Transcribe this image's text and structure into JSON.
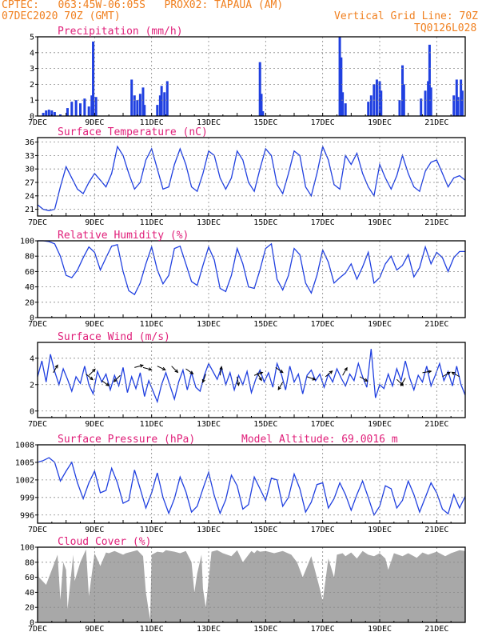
{
  "header": {
    "line1": "CPTEC:   063:45W-06:05S   PROX02: TAPAUA (AM)",
    "line2": "07DEC2020 70Z (GMT)",
    "vertical_grid": "Vertical Grid Line: 70Z",
    "code": "TQ0126L028"
  },
  "colors": {
    "header": "#f08020",
    "panel_title": "#e0207a",
    "series": "#2040e0",
    "cloud": "#a8a8a8",
    "grid": "#888888"
  },
  "chart_data": [
    {
      "id": "precip",
      "type": "bar",
      "title": "Precipitation (mm/h)",
      "xlim": [
        7,
        22
      ],
      "ylim": [
        0,
        5
      ],
      "yticks": [
        0,
        1,
        2,
        3,
        4,
        5
      ],
      "xticks": [
        "7DEC",
        "9DEC",
        "11DEC",
        "13DEC",
        "15DEC",
        "17DEC",
        "19DEC",
        "21DEC"
      ],
      "bars": [
        [
          7.2,
          0.2
        ],
        [
          7.3,
          0.35
        ],
        [
          7.4,
          0.4
        ],
        [
          7.5,
          0.35
        ],
        [
          7.6,
          0.25
        ],
        [
          7.8,
          0.1
        ],
        [
          8.05,
          0.5
        ],
        [
          8.2,
          0.9
        ],
        [
          8.35,
          1.0
        ],
        [
          8.5,
          0.8
        ],
        [
          8.65,
          1.1
        ],
        [
          8.8,
          0.6
        ],
        [
          8.9,
          1.3
        ],
        [
          8.95,
          4.7
        ],
        [
          9.05,
          1.2
        ],
        [
          10.3,
          2.3
        ],
        [
          10.4,
          1.3
        ],
        [
          10.5,
          1.0
        ],
        [
          10.6,
          1.4
        ],
        [
          10.7,
          1.8
        ],
        [
          10.75,
          0.7
        ],
        [
          11.2,
          0.7
        ],
        [
          11.3,
          1.3
        ],
        [
          11.35,
          1.9
        ],
        [
          11.45,
          1.5
        ],
        [
          11.55,
          2.2
        ],
        [
          14.8,
          3.4
        ],
        [
          14.85,
          1.4
        ],
        [
          14.9,
          0.3
        ],
        [
          17.6,
          5.0
        ],
        [
          17.65,
          3.7
        ],
        [
          17.7,
          1.5
        ],
        [
          17.8,
          0.8
        ],
        [
          18.6,
          0.9
        ],
        [
          18.7,
          1.3
        ],
        [
          18.8,
          2.0
        ],
        [
          18.9,
          2.3
        ],
        [
          19.0,
          2.2
        ],
        [
          19.05,
          1.6
        ],
        [
          19.7,
          1.0
        ],
        [
          19.8,
          3.2
        ],
        [
          19.85,
          2.0
        ],
        [
          20.45,
          1.1
        ],
        [
          20.6,
          1.6
        ],
        [
          20.7,
          2.2
        ],
        [
          20.75,
          4.5
        ],
        [
          20.8,
          1.8
        ],
        [
          21.6,
          1.3
        ],
        [
          21.7,
          2.3
        ],
        [
          21.75,
          1.2
        ],
        [
          21.85,
          2.3
        ],
        [
          21.9,
          1.6
        ]
      ]
    },
    {
      "id": "temp",
      "type": "line",
      "title": "Surface Temperature (nC)",
      "xlim": [
        7,
        22
      ],
      "ylim": [
        19.5,
        37
      ],
      "yticks": [
        21,
        24,
        27,
        30,
        33,
        36
      ],
      "xticks": [
        "7DEC",
        "9DEC",
        "11DEC",
        "13DEC",
        "15DEC",
        "17DEC",
        "19DEC",
        "21DEC"
      ],
      "x": [
        7,
        7.2,
        7.4,
        7.6,
        7.8,
        8.0,
        8.2,
        8.4,
        8.6,
        8.8,
        9.0,
        9.2,
        9.4,
        9.6,
        9.8,
        10.0,
        10.2,
        10.4,
        10.6,
        10.8,
        11.0,
        11.2,
        11.4,
        11.6,
        11.8,
        12.0,
        12.2,
        12.4,
        12.6,
        12.8,
        13.0,
        13.2,
        13.4,
        13.6,
        13.8,
        14.0,
        14.2,
        14.4,
        14.6,
        14.8,
        15.0,
        15.2,
        15.4,
        15.6,
        15.8,
        16.0,
        16.2,
        16.4,
        16.6,
        16.8,
        17.0,
        17.2,
        17.4,
        17.6,
        17.8,
        18.0,
        18.2,
        18.4,
        18.6,
        18.8,
        19.0,
        19.2,
        19.4,
        19.6,
        19.8,
        20.0,
        20.2,
        20.4,
        20.6,
        20.8,
        21.0,
        21.2,
        21.4,
        21.6,
        21.8,
        22.0
      ],
      "y": [
        22,
        21,
        20.7,
        21,
        26,
        30.5,
        28,
        25.5,
        24.5,
        27,
        29,
        27.5,
        26,
        29,
        35,
        33,
        29,
        25.5,
        27,
        32,
        34.5,
        30,
        25.5,
        26,
        31,
        34.5,
        31,
        26,
        25,
        29,
        34,
        33,
        28,
        25.5,
        28,
        34,
        32,
        27,
        25,
        30,
        34.5,
        33,
        26.5,
        24.5,
        29,
        34,
        33,
        26,
        24,
        29,
        35,
        32,
        26.5,
        25.5,
        33,
        31,
        33.5,
        29,
        26,
        24,
        31,
        28,
        25.5,
        28.5,
        33,
        29,
        26,
        25,
        29.5,
        31.5,
        32,
        29,
        26,
        28,
        28.5,
        27.5
      ]
    },
    {
      "id": "rh",
      "type": "line",
      "title": "Relative Humidity (%)",
      "xlim": [
        7,
        22
      ],
      "ylim": [
        0,
        100
      ],
      "yticks": [
        0,
        20,
        40,
        60,
        80,
        100
      ],
      "xticks": [
        "7DEC",
        "9DEC",
        "11DEC",
        "13DEC",
        "15DEC",
        "17DEC",
        "19DEC",
        "21DEC"
      ],
      "x": [
        7,
        7.2,
        7.4,
        7.6,
        7.8,
        8.0,
        8.2,
        8.4,
        8.6,
        8.8,
        9.0,
        9.2,
        9.4,
        9.6,
        9.8,
        10.0,
        10.2,
        10.4,
        10.6,
        10.8,
        11.0,
        11.2,
        11.4,
        11.6,
        11.8,
        12.0,
        12.2,
        12.4,
        12.6,
        12.8,
        13.0,
        13.2,
        13.4,
        13.6,
        13.8,
        14.0,
        14.2,
        14.4,
        14.6,
        14.8,
        15.0,
        15.2,
        15.4,
        15.6,
        15.8,
        16.0,
        16.2,
        16.4,
        16.6,
        16.8,
        17.0,
        17.2,
        17.4,
        17.6,
        17.8,
        18.0,
        18.2,
        18.4,
        18.6,
        18.8,
        19.0,
        19.2,
        19.4,
        19.6,
        19.8,
        20.0,
        20.2,
        20.4,
        20.6,
        20.8,
        21.0,
        21.2,
        21.4,
        21.6,
        21.8,
        22.0
      ],
      "y": [
        100,
        100,
        99,
        96,
        80,
        55,
        52,
        62,
        78,
        92,
        85,
        62,
        78,
        93,
        95,
        60,
        35,
        30,
        45,
        70,
        92,
        62,
        44,
        55,
        90,
        93,
        70,
        47,
        42,
        68,
        92,
        75,
        38,
        34,
        55,
        90,
        70,
        40,
        38,
        62,
        90,
        96,
        50,
        36,
        55,
        90,
        82,
        45,
        32,
        55,
        88,
        72,
        45,
        52,
        58,
        70,
        50,
        66,
        85,
        45,
        52,
        70,
        80,
        62,
        68,
        82,
        53,
        65,
        92,
        70,
        85,
        78,
        60,
        78,
        86,
        86
      ]
    },
    {
      "id": "wind",
      "type": "line",
      "title": "Surface Wind (m/s)",
      "xlim": [
        7,
        22
      ],
      "ylim": [
        -0.5,
        5.2
      ],
      "yticks": [
        0,
        2,
        4
      ],
      "xticks": [
        "7DEC",
        "9DEC",
        "11DEC",
        "13DEC",
        "15DEC",
        "17DEC",
        "19DEC",
        "21DEC"
      ],
      "x": [
        7,
        7.15,
        7.3,
        7.45,
        7.6,
        7.75,
        7.9,
        8.05,
        8.2,
        8.35,
        8.5,
        8.65,
        8.8,
        8.95,
        9.1,
        9.25,
        9.4,
        9.55,
        9.7,
        9.85,
        10.0,
        10.15,
        10.3,
        10.45,
        10.6,
        10.75,
        10.9,
        11.05,
        11.2,
        11.35,
        11.5,
        11.65,
        11.8,
        11.95,
        12.1,
        12.25,
        12.4,
        12.55,
        12.7,
        12.85,
        13.0,
        13.15,
        13.3,
        13.45,
        13.6,
        13.75,
        13.9,
        14.05,
        14.2,
        14.35,
        14.5,
        14.65,
        14.8,
        14.95,
        15.1,
        15.25,
        15.4,
        15.55,
        15.7,
        15.85,
        16.0,
        16.15,
        16.3,
        16.45,
        16.6,
        16.75,
        16.9,
        17.05,
        17.2,
        17.35,
        17.5,
        17.65,
        17.8,
        17.95,
        18.1,
        18.25,
        18.4,
        18.55,
        18.7,
        18.85,
        19.0,
        19.15,
        19.3,
        19.45,
        19.6,
        19.75,
        19.9,
        20.05,
        20.2,
        20.35,
        20.5,
        20.65,
        20.8,
        20.95,
        21.1,
        21.25,
        21.4,
        21.55,
        21.7,
        21.85,
        22.0
      ],
      "y": [
        2.6,
        3.8,
        2.2,
        4.3,
        3.0,
        2.0,
        3.2,
        2.4,
        1.5,
        2.6,
        2.1,
        3.4,
        2.0,
        1.3,
        3.0,
        2.2,
        2.8,
        1.6,
        2.7,
        1.9,
        3.3,
        1.4,
        2.6,
        1.7,
        2.9,
        1.1,
        2.3,
        1.5,
        0.7,
        2.0,
        2.9,
        1.9,
        0.9,
        2.2,
        3.1,
        1.6,
        2.9,
        1.8,
        1.5,
        2.7,
        3.6,
        3.0,
        2.4,
        3.3,
        2.0,
        2.9,
        1.6,
        2.7,
        2.0,
        3.0,
        1.4,
        2.4,
        3.1,
        2.2,
        2.9,
        1.8,
        3.6,
        2.8,
        1.6,
        3.4,
        2.2,
        2.8,
        1.3,
        2.7,
        3.1,
        2.3,
        2.8,
        1.8,
        2.8,
        2.2,
        3.2,
        2.5,
        1.9,
        2.8,
        2.3,
        3.6,
        2.6,
        1.8,
        4.7,
        1.0,
        2.0,
        1.7,
        2.8,
        1.9,
        3.2,
        2.3,
        3.8,
        2.5,
        1.6,
        2.7,
        2.2,
        3.4,
        1.9,
        2.7,
        3.6,
        2.3,
        3.0,
        1.9,
        3.4,
        2.0,
        1.2
      ],
      "arrows": [
        [
          7.55,
          2.9,
          60
        ],
        [
          8.7,
          2.8,
          -40
        ],
        [
          8.8,
          2.7,
          45
        ],
        [
          9.25,
          2.3,
          -35
        ],
        [
          9.9,
          2.7,
          -135
        ],
        [
          10.4,
          3.3,
          15
        ],
        [
          10.7,
          3.3,
          -15
        ],
        [
          11.2,
          3.4,
          -25
        ],
        [
          11.7,
          3.4,
          -45
        ],
        [
          12.2,
          3.2,
          -35
        ],
        [
          12.9,
          2.8,
          -110
        ],
        [
          13.4,
          2.7,
          80
        ],
        [
          14.0,
          2.6,
          -80
        ],
        [
          14.6,
          2.7,
          20
        ],
        [
          14.7,
          2.9,
          -60
        ],
        [
          15.35,
          3.3,
          -35
        ],
        [
          15.6,
          2.2,
          -120
        ],
        [
          16.45,
          2.6,
          -20
        ],
        [
          17.1,
          2.6,
          40
        ],
        [
          17.7,
          2.7,
          60
        ],
        [
          18.3,
          2.6,
          -30
        ],
        [
          19.6,
          2.4,
          -45
        ],
        [
          19.9,
          2.5,
          -120
        ],
        [
          20.5,
          2.9,
          10
        ],
        [
          21.2,
          2.6,
          30
        ],
        [
          21.8,
          2.6,
          150
        ]
      ]
    },
    {
      "id": "pres",
      "type": "line",
      "title": "Surface Pressure (hPa)",
      "extra_label": "Model Altitude: 69.0016 m",
      "xlim": [
        7,
        22
      ],
      "ylim": [
        994.6,
        1008
      ],
      "yticks": [
        996,
        999,
        1002,
        1005,
        1008
      ],
      "xticks": [
        "7DEC",
        "9DEC",
        "11DEC",
        "13DEC",
        "15DEC",
        "17DEC",
        "19DEC",
        "21DEC"
      ],
      "x": [
        7,
        7.2,
        7.4,
        7.6,
        7.8,
        8.0,
        8.2,
        8.4,
        8.6,
        8.8,
        9.0,
        9.2,
        9.4,
        9.6,
        9.8,
        10.0,
        10.2,
        10.4,
        10.6,
        10.8,
        11.0,
        11.2,
        11.4,
        11.6,
        11.8,
        12.0,
        12.2,
        12.4,
        12.6,
        12.8,
        13.0,
        13.2,
        13.4,
        13.6,
        13.8,
        14.0,
        14.2,
        14.4,
        14.6,
        14.8,
        15.0,
        15.2,
        15.4,
        15.6,
        15.8,
        16.0,
        16.2,
        16.4,
        16.6,
        16.8,
        17.0,
        17.2,
        17.4,
        17.6,
        17.8,
        18.0,
        18.2,
        18.4,
        18.6,
        18.8,
        19.0,
        19.2,
        19.4,
        19.6,
        19.8,
        20.0,
        20.2,
        20.4,
        20.6,
        20.8,
        21.0,
        21.2,
        21.4,
        21.6,
        21.8,
        22.0
      ],
      "y": [
        1005,
        1005.3,
        1005.8,
        1005,
        1001.8,
        1003.5,
        1005,
        1001.5,
        998.8,
        1001.5,
        1003.5,
        999.8,
        1000.2,
        1004,
        1001.5,
        998,
        998.5,
        1003.7,
        1000.5,
        997.2,
        999.8,
        1003.2,
        999,
        996.3,
        998.8,
        1002.5,
        1000,
        996.5,
        997.5,
        1000.5,
        1003.3,
        999.3,
        996.3,
        998.6,
        1002.8,
        1001,
        997,
        997.8,
        1002.5,
        1000.5,
        998.5,
        1002.3,
        1002,
        997.5,
        999,
        1003,
        1000.5,
        996.5,
        998.2,
        1001.2,
        1001.5,
        997.2,
        998.8,
        1001.5,
        999.5,
        996.8,
        999.5,
        1001.8,
        999,
        996,
        997.5,
        1001,
        1000.5,
        997.2,
        998.5,
        1001.8,
        999.5,
        996.5,
        999,
        1001.5,
        999.8,
        997,
        996.2,
        999.5,
        997.2,
        999.2
      ]
    },
    {
      "id": "cloud",
      "type": "area",
      "title": "Cloud Cover (%)",
      "xlim": [
        7,
        22
      ],
      "ylim": [
        0,
        100
      ],
      "yticks": [
        0,
        20,
        40,
        60,
        80,
        100
      ],
      "xticks": [
        "7DEC",
        "9DEC",
        "11DEC",
        "13DEC",
        "15DEC",
        "17DEC",
        "19DEC",
        "21DEC"
      ],
      "x": [
        7,
        7.05,
        7.3,
        7.7,
        7.8,
        7.9,
        8.0,
        8.05,
        8.25,
        8.3,
        8.5,
        8.7,
        8.8,
        9.0,
        9.2,
        9.4,
        9.5,
        9.7,
        10.0,
        10.1,
        10.3,
        10.5,
        10.7,
        10.8,
        10.9,
        10.95,
        11.0,
        11.2,
        11.4,
        11.5,
        11.8,
        12.0,
        12.2,
        12.4,
        12.5,
        12.6,
        12.75,
        12.8,
        12.9,
        13.1,
        13.3,
        13.5,
        13.8,
        14.0,
        14.2,
        14.5,
        14.6,
        14.7,
        14.8,
        15.0,
        15.3,
        15.6,
        15.9,
        16.1,
        16.3,
        16.6,
        16.9,
        17.0,
        17.2,
        17.4,
        17.5,
        17.7,
        17.8,
        18.0,
        18.2,
        18.4,
        18.6,
        18.8,
        19.0,
        19.2,
        19.3,
        19.5,
        19.8,
        20.0,
        20.3,
        20.5,
        20.7,
        21.0,
        21.3,
        21.5,
        21.8,
        22.0
      ],
      "y": [
        97,
        60,
        50,
        90,
        30,
        80,
        70,
        18,
        90,
        55,
        80,
        97,
        35,
        92,
        75,
        93,
        92,
        95,
        90,
        92,
        94,
        96,
        88,
        40,
        15,
        4,
        90,
        94,
        93,
        96,
        94,
        92,
        95,
        80,
        40,
        65,
        90,
        45,
        20,
        94,
        96,
        92,
        88,
        96,
        80,
        95,
        92,
        96,
        94,
        95,
        92,
        95,
        90,
        80,
        60,
        88,
        45,
        28,
        85,
        60,
        90,
        92,
        88,
        93,
        85,
        95,
        90,
        88,
        92,
        85,
        70,
        92,
        88,
        92,
        86,
        93,
        90,
        94,
        88,
        92,
        96,
        95
      ]
    }
  ]
}
